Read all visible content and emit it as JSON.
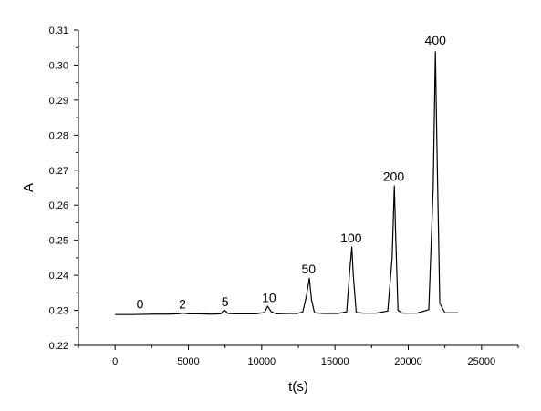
{
  "chart_data": {
    "type": "line",
    "title": "",
    "xlabel": "t(s)",
    "ylabel": "A",
    "xlim": [
      -2500,
      27500
    ],
    "ylim": [
      0.22,
      0.31
    ],
    "x_ticks": [
      0,
      5000,
      10000,
      15000,
      20000,
      25000
    ],
    "x_tick_labels": [
      "0",
      "5000",
      "10000",
      "15000",
      "20000",
      "25000"
    ],
    "y_ticks": [
      0.22,
      0.23,
      0.24,
      0.25,
      0.26,
      0.27,
      0.28,
      0.29,
      0.3,
      0.31
    ],
    "y_tick_labels": [
      "0.22",
      "0.23",
      "0.24",
      "0.25",
      "0.26",
      "0.27",
      "0.28",
      "0.29",
      "0.30",
      "0.31"
    ],
    "grid": false,
    "legend": "none",
    "line_color": "#000000",
    "series": [
      {
        "x": [
          0,
          1200,
          2600,
          3600,
          4300,
          4650,
          5000,
          5600,
          6600,
          7200,
          7450,
          7700,
          8100,
          8800,
          9600,
          10200,
          10400,
          10650,
          11000,
          11800,
          12400,
          12800,
          13050,
          13250,
          13400,
          13600,
          14200,
          15200,
          15800,
          16000,
          16150,
          16250,
          16450,
          16900,
          17800,
          18600,
          18900,
          19050,
          19150,
          19300,
          19600,
          20600,
          21400,
          21700,
          21850,
          21950,
          22150,
          22500,
          23400
        ],
        "y": [
          0.2288,
          0.2288,
          0.2289,
          0.2289,
          0.229,
          0.2292,
          0.229,
          0.229,
          0.2289,
          0.229,
          0.2301,
          0.2291,
          0.229,
          0.229,
          0.229,
          0.2294,
          0.2312,
          0.2296,
          0.229,
          0.2291,
          0.2291,
          0.2295,
          0.234,
          0.2392,
          0.233,
          0.2293,
          0.2291,
          0.2291,
          0.2296,
          0.241,
          0.2481,
          0.24,
          0.2294,
          0.2292,
          0.2292,
          0.2298,
          0.245,
          0.2655,
          0.25,
          0.23,
          0.2292,
          0.2292,
          0.2302,
          0.265,
          0.3038,
          0.278,
          0.232,
          0.2293,
          0.2293
        ]
      }
    ],
    "annotations": [
      {
        "text": "0",
        "x": 1700,
        "y": 0.2305
      },
      {
        "text": "2",
        "x": 4600,
        "y": 0.2305
      },
      {
        "text": "5",
        "x": 7500,
        "y": 0.2312
      },
      {
        "text": "10",
        "x": 10500,
        "y": 0.2323
      },
      {
        "text": "50",
        "x": 13200,
        "y": 0.2405
      },
      {
        "text": "100",
        "x": 16100,
        "y": 0.2494
      },
      {
        "text": "200",
        "x": 19000,
        "y": 0.267
      },
      {
        "text": "400",
        "x": 21850,
        "y": 0.3058
      }
    ]
  }
}
